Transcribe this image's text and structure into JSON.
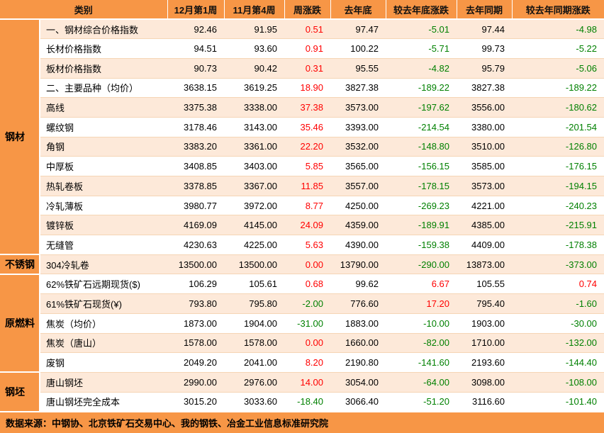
{
  "colors": {
    "header_bg": "#F79646",
    "row_bg": "#FFFFFF",
    "row_alt_bg": "#FDE9D9",
    "up_text": "#FF0000",
    "down_text": "#008000",
    "grid_line": "#F5D5B5"
  },
  "table": {
    "columns": [
      {
        "key": "category",
        "label": "类别",
        "span": 2
      },
      {
        "key": "dec-week1",
        "label": "12月第1周"
      },
      {
        "key": "nov-week4",
        "label": "11月第4周"
      },
      {
        "key": "weekly-change",
        "label": "周涨跌"
      },
      {
        "key": "last-year-end",
        "label": "去年底"
      },
      {
        "key": "vs-year-end",
        "label": "较去年底涨跌"
      },
      {
        "key": "last-year-same-period",
        "label": "去年同期"
      },
      {
        "key": "vs-same-period",
        "label": "较去年同期涨跌"
      }
    ],
    "value_keys": [
      "dec-week1",
      "nov-week4",
      "weekly-change",
      "last-year-end",
      "vs-year-end",
      "last-year-same-period",
      "vs-same-period"
    ],
    "colored_value_indices": [
      2,
      4,
      6
    ],
    "groups": [
      {
        "name": "steel",
        "label": "钢材",
        "rows": 12
      },
      {
        "name": "stainless-steel",
        "label": "不锈钢",
        "rows": 1
      },
      {
        "name": "raw-fuel",
        "label": "原燃料",
        "rows": 5
      },
      {
        "name": "billet",
        "label": "钢坯",
        "rows": 2
      }
    ],
    "rows": [
      {
        "name": "一、钢材综合价格指数",
        "values": [
          "92.46",
          "91.95",
          "0.51",
          "97.47",
          "-5.01",
          "97.44",
          "-4.98"
        ]
      },
      {
        "name": "长材价格指数",
        "values": [
          "94.51",
          "93.60",
          "0.91",
          "100.22",
          "-5.71",
          "99.73",
          "-5.22"
        ]
      },
      {
        "name": "板材价格指数",
        "values": [
          "90.73",
          "90.42",
          "0.31",
          "95.55",
          "-4.82",
          "95.79",
          "-5.06"
        ]
      },
      {
        "name": "二、主要品种（均价）",
        "values": [
          "3638.15",
          "3619.25",
          "18.90",
          "3827.38",
          "-189.22",
          "3827.38",
          "-189.22"
        ]
      },
      {
        "name": "高线",
        "values": [
          "3375.38",
          "3338.00",
          "37.38",
          "3573.00",
          "-197.62",
          "3556.00",
          "-180.62"
        ]
      },
      {
        "name": "螺纹钢",
        "values": [
          "3178.46",
          "3143.00",
          "35.46",
          "3393.00",
          "-214.54",
          "3380.00",
          "-201.54"
        ]
      },
      {
        "name": "角钢",
        "values": [
          "3383.20",
          "3361.00",
          "22.20",
          "3532.00",
          "-148.80",
          "3510.00",
          "-126.80"
        ]
      },
      {
        "name": "中厚板",
        "values": [
          "3408.85",
          "3403.00",
          "5.85",
          "3565.00",
          "-156.15",
          "3585.00",
          "-176.15"
        ]
      },
      {
        "name": "热轧卷板",
        "values": [
          "3378.85",
          "3367.00",
          "11.85",
          "3557.00",
          "-178.15",
          "3573.00",
          "-194.15"
        ]
      },
      {
        "name": "冷轧薄板",
        "values": [
          "3980.77",
          "3972.00",
          "8.77",
          "4250.00",
          "-269.23",
          "4221.00",
          "-240.23"
        ]
      },
      {
        "name": "镀锌板",
        "values": [
          "4169.09",
          "4145.00",
          "24.09",
          "4359.00",
          "-189.91",
          "4385.00",
          "-215.91"
        ]
      },
      {
        "name": "无缝管",
        "values": [
          "4230.63",
          "4225.00",
          "5.63",
          "4390.00",
          "-159.38",
          "4409.00",
          "-178.38"
        ]
      },
      {
        "name": "304冷轧卷",
        "values": [
          "13500.00",
          "13500.00",
          "0.00",
          "13790.00",
          "-290.00",
          "13873.00",
          "-373.00"
        ]
      },
      {
        "name": "62%铁矿石远期现货($)",
        "values": [
          "106.29",
          "105.61",
          "0.68",
          "99.62",
          "6.67",
          "105.55",
          "0.74"
        ]
      },
      {
        "name": "61%铁矿石现货(¥)",
        "values": [
          "793.80",
          "795.80",
          "-2.00",
          "776.60",
          "17.20",
          "795.40",
          "-1.60"
        ]
      },
      {
        "name": "焦炭（均价）",
        "values": [
          "1873.00",
          "1904.00",
          "-31.00",
          "1883.00",
          "-10.00",
          "1903.00",
          "-30.00"
        ]
      },
      {
        "name": "焦炭（唐山）",
        "values": [
          "1578.00",
          "1578.00",
          "0.00",
          "1660.00",
          "-82.00",
          "1710.00",
          "-132.00"
        ]
      },
      {
        "name": "废钢",
        "values": [
          "2049.20",
          "2041.00",
          "8.20",
          "2190.80",
          "-141.60",
          "2193.60",
          "-144.40"
        ]
      },
      {
        "name": "唐山钢坯",
        "values": [
          "2990.00",
          "2976.00",
          "14.00",
          "3054.00",
          "-64.00",
          "3098.00",
          "-108.00"
        ]
      },
      {
        "name": "唐山钢坯完全成本",
        "values": [
          "3015.20",
          "3033.60",
          "-18.40",
          "3066.40",
          "-51.20",
          "3116.60",
          "-101.40"
        ]
      }
    ]
  },
  "footer": {
    "source": "数据来源：中钢协、北京铁矿石交易中心、我的钢铁、冶金工业信息标准研究院"
  }
}
